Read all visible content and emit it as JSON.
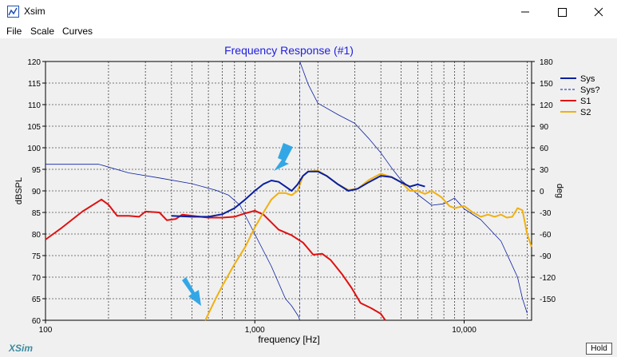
{
  "window": {
    "title": "Xsim",
    "minimize_icon": "minimize-icon",
    "maximize_icon": "maximize-icon",
    "close_icon": "close-icon"
  },
  "menu": {
    "items": [
      "File",
      "Scale",
      "Curves"
    ]
  },
  "footer": {
    "brand": "XSim",
    "hold_label": "Hold"
  },
  "colors": {
    "sys": "#0a1fa0",
    "s1": "#e01010",
    "s2": "#f0b010",
    "title": "#2020e0",
    "arrow": "#33a7e6"
  },
  "chart_data": {
    "type": "line",
    "title": "Frequency Response (#1)",
    "xlabel": "frequency [Hz]",
    "ylabel_left": "dBSPL",
    "ylabel_right": "deg",
    "xscale": "log",
    "xlim": [
      100,
      21000
    ],
    "ylim_left": [
      60,
      120
    ],
    "ylim_right": [
      -180,
      180
    ],
    "x_ticks": [
      "100",
      "1,000",
      "10,000"
    ],
    "y_ticks_left": [
      "120",
      "115",
      "110",
      "105",
      "100",
      "95",
      "90",
      "85",
      "80",
      "75",
      "70",
      "65",
      "60"
    ],
    "y_ticks_right": [
      "180",
      "150",
      "120",
      "90",
      "60",
      "30",
      "0",
      "-30",
      "-60",
      "-90",
      "-120",
      "-150"
    ],
    "grid": true,
    "legend_position": "top-right",
    "legend": [
      "Sys",
      "Sys?",
      "S1",
      "S2"
    ],
    "series": [
      {
        "name": "Sys",
        "axis": "left",
        "style": "solid-thick",
        "points": [
          [
            400,
            84.2
          ],
          [
            500,
            84.0
          ],
          [
            600,
            84.0
          ],
          [
            700,
            84.6
          ],
          [
            800,
            86.0
          ],
          [
            900,
            88.0
          ],
          [
            1000,
            90.0
          ],
          [
            1100,
            91.6
          ],
          [
            1200,
            92.4
          ],
          [
            1300,
            92.1
          ],
          [
            1400,
            91.0
          ],
          [
            1500,
            90.0
          ],
          [
            1600,
            91.5
          ],
          [
            1700,
            93.5
          ],
          [
            1800,
            94.5
          ],
          [
            2000,
            94.5
          ],
          [
            2200,
            93.5
          ],
          [
            2500,
            91.5
          ],
          [
            2800,
            90.0
          ],
          [
            3100,
            90.5
          ],
          [
            3500,
            92.0
          ],
          [
            4000,
            93.5
          ],
          [
            4500,
            93.2
          ],
          [
            5000,
            92.0
          ],
          [
            5500,
            91.0
          ],
          [
            6000,
            91.5
          ],
          [
            6500,
            91.0
          ]
        ]
      },
      {
        "name": "Sys?",
        "axis": "right",
        "style": "thin",
        "points": [
          [
            100,
            37
          ],
          [
            180,
            37
          ],
          [
            250,
            25
          ],
          [
            350,
            18
          ],
          [
            500,
            10
          ],
          [
            650,
            1
          ],
          [
            750,
            -6
          ],
          [
            850,
            -20
          ],
          [
            1000,
            -60
          ],
          [
            1200,
            -105
          ],
          [
            1400,
            -150
          ],
          [
            1500,
            -160
          ],
          [
            1620,
            -175
          ],
          [
            1640,
            180
          ],
          [
            1800,
            148
          ],
          [
            2000,
            122
          ],
          [
            2500,
            106
          ],
          [
            3000,
            94
          ],
          [
            3500,
            73
          ],
          [
            4000,
            53
          ],
          [
            4500,
            32
          ],
          [
            5000,
            15
          ],
          [
            6000,
            -5
          ],
          [
            7000,
            -20
          ],
          [
            8000,
            -18
          ],
          [
            9000,
            -10
          ],
          [
            10000,
            -25
          ],
          [
            12000,
            -40
          ],
          [
            15000,
            -70
          ],
          [
            18000,
            -120
          ],
          [
            19000,
            -150
          ],
          [
            20000,
            -170
          ]
        ]
      },
      {
        "name": "S1",
        "axis": "left",
        "style": "solid-thick",
        "points": [
          [
            100,
            78.7
          ],
          [
            120,
            81.5
          ],
          [
            150,
            85.2
          ],
          [
            185,
            88.0
          ],
          [
            200,
            86.8
          ],
          [
            220,
            84.2
          ],
          [
            250,
            84.2
          ],
          [
            280,
            84.0
          ],
          [
            300,
            85.2
          ],
          [
            350,
            85.0
          ],
          [
            380,
            83.2
          ],
          [
            420,
            83.5
          ],
          [
            450,
            84.5
          ],
          [
            550,
            84.0
          ],
          [
            600,
            83.8
          ],
          [
            700,
            83.8
          ],
          [
            800,
            84.0
          ],
          [
            900,
            84.8
          ],
          [
            1000,
            85.4
          ],
          [
            1100,
            84.5
          ],
          [
            1300,
            81.0
          ],
          [
            1500,
            79.7
          ],
          [
            1700,
            78.0
          ],
          [
            1900,
            75.2
          ],
          [
            2100,
            75.4
          ],
          [
            2300,
            74.0
          ],
          [
            2600,
            70.8
          ],
          [
            2900,
            67.5
          ],
          [
            3200,
            64.0
          ],
          [
            3600,
            62.8
          ],
          [
            4000,
            61.5
          ],
          [
            4200,
            60.0
          ]
        ]
      },
      {
        "name": "S2",
        "axis": "left",
        "style": "solid-thick",
        "points": [
          [
            580,
            60.0
          ],
          [
            650,
            65.0
          ],
          [
            700,
            68.0
          ],
          [
            800,
            73.0
          ],
          [
            900,
            77.0
          ],
          [
            1000,
            81.5
          ],
          [
            1100,
            85.0
          ],
          [
            1200,
            88.0
          ],
          [
            1300,
            89.5
          ],
          [
            1400,
            89.5
          ],
          [
            1500,
            89.0
          ],
          [
            1600,
            90.0
          ],
          [
            1700,
            93.5
          ],
          [
            1800,
            94.5
          ],
          [
            2000,
            94.7
          ],
          [
            2200,
            93.5
          ],
          [
            2500,
            91.5
          ],
          [
            2800,
            90.2
          ],
          [
            3100,
            90.5
          ],
          [
            3500,
            92.5
          ],
          [
            4000,
            94.0
          ],
          [
            4500,
            93.2
          ],
          [
            5000,
            92.0
          ],
          [
            5500,
            90.0
          ],
          [
            6000,
            90.0
          ],
          [
            6500,
            89.3
          ],
          [
            7000,
            90.0
          ],
          [
            7800,
            88.5
          ],
          [
            8500,
            86.5
          ],
          [
            9000,
            86.0
          ],
          [
            10000,
            86.5
          ],
          [
            11000,
            85.0
          ],
          [
            12000,
            84.0
          ],
          [
            13000,
            84.5
          ],
          [
            14000,
            84.0
          ],
          [
            15000,
            84.5
          ],
          [
            16000,
            83.8
          ],
          [
            17000,
            84.0
          ],
          [
            18000,
            86.0
          ],
          [
            19000,
            85.5
          ],
          [
            20000,
            80.0
          ],
          [
            21000,
            77.0
          ]
        ]
      }
    ]
  }
}
